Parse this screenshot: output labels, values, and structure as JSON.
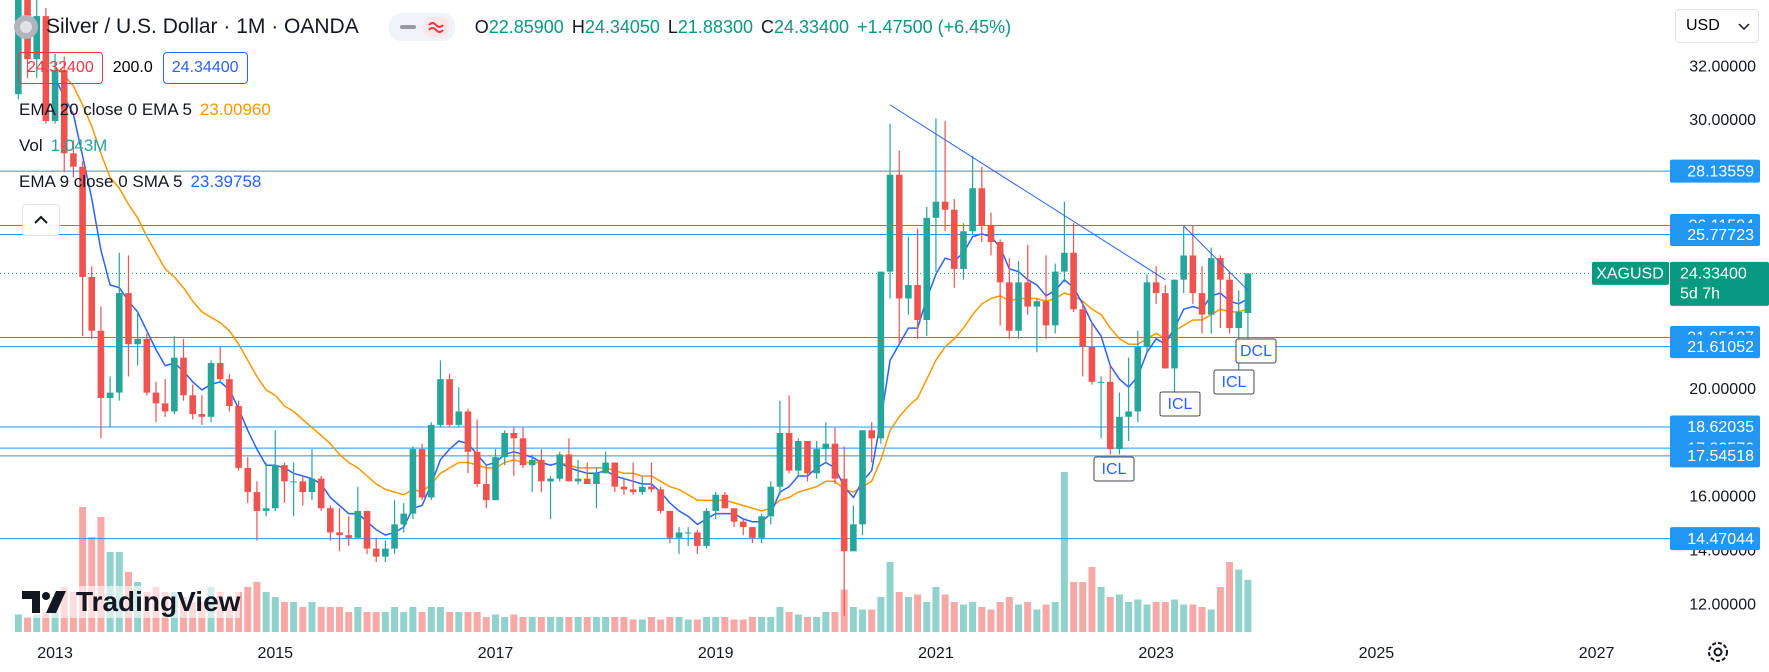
{
  "header": {
    "symbol": "Silver / U.S. Dollar · 1M · OANDA",
    "ohlc": [
      {
        "letter": "O",
        "value": "22.85900"
      },
      {
        "letter": "H",
        "value": "24.34050"
      },
      {
        "letter": "L",
        "value": "21.88300"
      },
      {
        "letter": "C",
        "value": "24.33400"
      }
    ],
    "change": "+1.47500 (+6.45%)",
    "inputs": [
      "24.32400",
      "200.0",
      "24.34400"
    ],
    "currency": "USD",
    "logo": "TradingView"
  },
  "chart_data": {
    "type": "candlestick",
    "x": [
      "2012-09",
      "2012-10",
      "2012-11",
      "2012-12",
      "2013-01",
      "2013-02",
      "2013-03",
      "2013-04",
      "2013-05",
      "2013-06",
      "2013-07",
      "2013-08",
      "2013-09",
      "2013-10",
      "2013-11",
      "2013-12",
      "2014-01",
      "2014-02",
      "2014-03",
      "2014-04",
      "2014-05",
      "2014-06",
      "2014-07",
      "2014-08",
      "2014-09",
      "2014-10",
      "2014-11",
      "2014-12",
      "2015-01",
      "2015-02",
      "2015-03",
      "2015-04",
      "2015-05",
      "2015-06",
      "2015-07",
      "2015-08",
      "2015-09",
      "2015-10",
      "2015-11",
      "2015-12",
      "2016-01",
      "2016-02",
      "2016-03",
      "2016-04",
      "2016-05",
      "2016-06",
      "2016-07",
      "2016-08",
      "2016-09",
      "2016-10",
      "2016-11",
      "2016-12",
      "2017-01",
      "2017-02",
      "2017-03",
      "2017-04",
      "2017-05",
      "2017-06",
      "2017-07",
      "2017-08",
      "2017-09",
      "2017-10",
      "2017-11",
      "2017-12",
      "2018-01",
      "2018-02",
      "2018-03",
      "2018-04",
      "2018-05",
      "2018-06",
      "2018-07",
      "2018-08",
      "2018-09",
      "2018-10",
      "2018-11",
      "2018-12",
      "2019-01",
      "2019-02",
      "2019-03",
      "2019-04",
      "2019-05",
      "2019-06",
      "2019-07",
      "2019-08",
      "2019-09",
      "2019-10",
      "2019-11",
      "2019-12",
      "2020-01",
      "2020-02",
      "2020-03",
      "2020-04",
      "2020-05",
      "2020-06",
      "2020-07",
      "2020-08",
      "2020-09",
      "2020-10",
      "2020-11",
      "2020-12",
      "2021-01",
      "2021-02",
      "2021-03",
      "2021-04",
      "2021-05",
      "2021-06",
      "2021-07",
      "2021-08",
      "2021-09",
      "2021-10",
      "2021-11",
      "2021-12",
      "2022-01",
      "2022-02",
      "2022-03",
      "2022-04",
      "2022-05",
      "2022-06",
      "2022-07",
      "2022-08",
      "2022-09",
      "2022-10",
      "2022-11",
      "2022-12",
      "2023-01",
      "2023-02",
      "2023-03",
      "2023-04",
      "2023-05",
      "2023-06",
      "2023-07",
      "2023-08",
      "2023-09",
      "2023-10",
      "2023-11"
    ],
    "open": [
      31.0,
      34.6,
      32.3,
      33.9,
      30.0,
      31.9,
      28.8,
      28.3,
      24.2,
      22.2,
      19.7,
      19.9,
      23.6,
      21.7,
      21.9,
      19.9,
      19.5,
      19.2,
      21.2,
      19.8,
      19.1,
      19.0,
      21.0,
      20.4,
      19.4,
      17.1,
      16.2,
      15.5,
      15.6,
      17.2,
      16.6,
      16.6,
      16.2,
      16.7,
      15.6,
      14.7,
      14.6,
      14.5,
      15.5,
      14.1,
      13.8,
      14.1,
      15.0,
      15.4,
      17.8,
      16.0,
      18.7,
      20.4,
      18.7,
      19.2,
      17.7,
      16.5,
      15.9,
      17.5,
      18.4,
      18.2,
      17.2,
      17.4,
      16.6,
      16.7,
      17.6,
      16.6,
      16.7,
      16.5,
      16.9,
      17.3,
      16.4,
      16.3,
      16.2,
      16.4,
      16.3,
      15.5,
      14.5,
      14.7,
      14.7,
      14.2,
      15.5,
      16.1,
      15.6,
      15.1,
      14.9,
      14.5,
      15.3,
      16.4,
      18.4,
      17.0,
      18.1,
      16.9,
      17.8,
      18.0,
      16.7,
      14.0,
      15.0,
      18.5,
      18.2,
      24.4,
      28.0,
      23.4,
      23.9,
      22.6,
      26.4,
      27.0,
      26.7,
      24.5,
      25.9,
      27.5,
      26.1,
      25.5,
      24.0,
      22.2,
      24.0,
      23.1,
      23.3,
      22.4,
      24.4,
      25.1,
      23.0,
      21.6,
      20.3,
      20.3,
      17.8,
      19.0,
      19.2,
      21.6,
      24.0,
      23.6,
      20.8,
      24.1,
      25.0,
      23.6,
      22.8,
      24.9,
      24.1,
      22.3,
      22.859
    ],
    "high": [
      35.4,
      34.9,
      34.5,
      34.2,
      32.5,
      32.4,
      29.3,
      28.5,
      24.6,
      23.1,
      20.5,
      25.1,
      25.0,
      22.9,
      22.1,
      20.3,
      20.4,
      22.0,
      21.9,
      20.2,
      19.8,
      21.1,
      21.6,
      20.6,
      19.6,
      17.5,
      16.6,
      17.3,
      18.5,
      17.3,
      17.3,
      16.8,
      17.8,
      16.8,
      15.7,
      15.6,
      15.3,
      16.4,
      15.5,
      14.5,
      14.4,
      15.9,
      15.8,
      17.9,
      18.0,
      18.8,
      21.1,
      20.6,
      20.1,
      19.3,
      18.9,
      17.2,
      17.8,
      18.5,
      18.6,
      18.6,
      17.6,
      17.8,
      16.8,
      17.7,
      18.2,
      17.4,
      17.3,
      17.1,
      17.7,
      17.3,
      16.7,
      17.3,
      16.8,
      17.3,
      16.4,
      15.5,
      14.9,
      14.9,
      14.8,
      15.6,
      16.2,
      16.2,
      15.6,
      15.2,
      14.9,
      15.4,
      16.6,
      19.6,
      19.8,
      18.2,
      18.1,
      18.1,
      18.8,
      18.6,
      17.9,
      15.7,
      18.5,
      18.8,
      24.4,
      29.9,
      28.9,
      25.7,
      26.0,
      26.8,
      30.1,
      30.0,
      27.1,
      26.2,
      28.7,
      28.3,
      26.6,
      25.6,
      24.9,
      24.8,
      25.4,
      23.4,
      25.0,
      24.7,
      27.0,
      26.2,
      23.3,
      22.5,
      20.5,
      20.9,
      19.9,
      21.2,
      22.2,
      24.3,
      24.6,
      23.9,
      24.1,
      26.1,
      26.1,
      24.6,
      25.3,
      25.0,
      24.4,
      23.7,
      24.3405
    ],
    "low": [
      30.8,
      31.6,
      31.6,
      29.9,
      29.9,
      28.1,
      27.9,
      22.0,
      21.9,
      18.2,
      18.6,
      19.6,
      20.5,
      20.9,
      19.8,
      18.8,
      19.0,
      19.1,
      19.6,
      18.9,
      18.7,
      18.8,
      20.3,
      19.2,
      17.0,
      15.8,
      14.4,
      15.3,
      15.5,
      15.8,
      15.3,
      15.7,
      15.9,
      15.5,
      14.4,
      14.0,
      14.2,
      14.5,
      13.9,
      13.6,
      13.6,
      13.9,
      14.7,
      15.2,
      15.9,
      15.9,
      18.6,
      18.6,
      18.6,
      16.9,
      16.4,
      15.6,
      15.9,
      17.2,
      16.8,
      17.1,
      16.2,
      16.2,
      15.2,
      16.6,
      16.6,
      16.5,
      16.5,
      15.6,
      16.9,
      16.2,
      16.1,
      16.1,
      16.1,
      16.2,
      15.4,
      14.3,
      13.9,
      14.2,
      13.9,
      14.1,
      15.2,
      15.6,
      14.9,
      14.6,
      14.3,
      14.3,
      15.0,
      16.1,
      16.9,
      16.8,
      16.6,
      16.7,
      17.3,
      16.5,
      11.6,
      14.0,
      14.6,
      17.3,
      18.0,
      23.4,
      21.7,
      22.8,
      21.9,
      22.0,
      24.4,
      25.9,
      23.8,
      24.1,
      25.8,
      25.5,
      25.0,
      22.4,
      21.9,
      21.9,
      22.8,
      21.4,
      21.9,
      22.1,
      24.0,
      22.9,
      20.5,
      20.2,
      18.2,
      17.6,
      17.6,
      18.1,
      18.8,
      21.4,
      23.2,
      20.8,
      19.9,
      23.6,
      23.2,
      22.1,
      22.1,
      22.3,
      22.1,
      20.7,
      21.883
    ],
    "close": [
      34.6,
      32.3,
      33.9,
      30.0,
      31.9,
      28.8,
      28.3,
      24.2,
      22.2,
      19.7,
      19.9,
      23.6,
      21.7,
      21.9,
      19.9,
      19.5,
      19.2,
      21.2,
      19.8,
      19.1,
      19.0,
      21.0,
      20.4,
      19.4,
      17.1,
      16.2,
      15.5,
      15.6,
      17.2,
      16.6,
      16.6,
      16.2,
      16.7,
      15.6,
      14.7,
      14.6,
      14.5,
      15.5,
      14.1,
      13.8,
      14.1,
      15.0,
      15.4,
      17.8,
      16.0,
      18.7,
      20.4,
      18.7,
      19.2,
      17.7,
      16.5,
      15.9,
      17.5,
      18.4,
      18.2,
      17.2,
      17.4,
      16.6,
      16.7,
      17.6,
      16.6,
      16.7,
      16.5,
      16.9,
      17.3,
      16.4,
      16.3,
      16.2,
      16.4,
      16.3,
      15.5,
      14.5,
      14.7,
      14.7,
      14.2,
      15.5,
      16.1,
      15.6,
      15.1,
      14.9,
      14.5,
      15.3,
      16.4,
      18.4,
      17.0,
      18.1,
      16.9,
      17.8,
      18.0,
      16.7,
      14.0,
      15.0,
      18.5,
      18.2,
      24.4,
      28.0,
      23.4,
      23.9,
      22.6,
      26.4,
      27.0,
      26.7,
      24.5,
      25.9,
      27.5,
      26.1,
      25.5,
      24.0,
      22.2,
      24.0,
      23.1,
      23.3,
      22.4,
      24.4,
      25.1,
      23.0,
      21.6,
      20.3,
      20.3,
      17.8,
      19.0,
      19.2,
      21.6,
      24.0,
      23.6,
      20.8,
      24.1,
      25.0,
      23.6,
      22.8,
      24.9,
      24.1,
      22.3,
      22.9,
      24.334
    ],
    "up_color": "#26a69a",
    "down_color": "#ef5350",
    "volume_name": "Vol",
    "volume_legend": "1.043M",
    "volume": [
      0.35,
      0.3,
      0.35,
      0.4,
      0.7,
      0.9,
      0.8,
      2.5,
      1.9,
      2.3,
      1.6,
      1.6,
      1.2,
      1.0,
      0.8,
      0.9,
      0.8,
      0.8,
      0.7,
      0.6,
      0.6,
      0.9,
      0.8,
      0.6,
      0.8,
      0.9,
      1.0,
      0.8,
      0.7,
      0.6,
      0.6,
      0.5,
      0.6,
      0.5,
      0.5,
      0.5,
      0.4,
      0.5,
      0.4,
      0.4,
      0.4,
      0.5,
      0.4,
      0.5,
      0.4,
      0.5,
      0.5,
      0.4,
      0.4,
      0.4,
      0.4,
      0.3,
      0.35,
      0.3,
      0.35,
      0.3,
      0.3,
      0.3,
      0.3,
      0.3,
      0.3,
      0.3,
      0.3,
      0.3,
      0.3,
      0.3,
      0.3,
      0.25,
      0.25,
      0.3,
      0.25,
      0.3,
      0.3,
      0.25,
      0.25,
      0.3,
      0.3,
      0.3,
      0.25,
      0.25,
      0.3,
      0.3,
      0.3,
      0.5,
      0.4,
      0.35,
      0.3,
      0.3,
      0.4,
      0.4,
      0.85,
      0.5,
      0.45,
      0.45,
      0.7,
      1.4,
      0.8,
      0.7,
      0.75,
      0.6,
      0.9,
      0.75,
      0.6,
      0.55,
      0.6,
      0.5,
      0.45,
      0.6,
      0.7,
      0.55,
      0.6,
      0.45,
      0.55,
      0.6,
      3.2,
      1.0,
      1.0,
      1.3,
      0.9,
      0.7,
      0.75,
      0.6,
      0.65,
      0.55,
      0.6,
      0.6,
      0.65,
      0.55,
      0.55,
      0.5,
      0.45,
      0.9,
      1.4,
      1.25,
      1.043
    ],
    "overlays": [
      {
        "name": "EMA 20 close 0 EMA 5",
        "legend_value": "23.00960",
        "color": "#ff9800",
        "values": [
          null,
          null,
          null,
          null,
          32.0,
          31.7,
          31.3,
          30.6,
          29.8,
          28.8,
          27.9,
          27.5,
          26.9,
          26.4,
          25.7,
          25.1,
          24.5,
          24.2,
          23.8,
          23.3,
          22.9,
          22.7,
          22.5,
          22.2,
          21.7,
          21.1,
          20.5,
          20.0,
          19.8,
          19.4,
          19.2,
          18.9,
          18.6,
          18.3,
          18.0,
          17.6,
          17.3,
          17.1,
          16.8,
          16.5,
          16.3,
          16.2,
          16.1,
          16.3,
          16.2,
          16.5,
          16.9,
          17.1,
          17.3,
          17.3,
          17.2,
          17.1,
          17.1,
          17.3,
          17.4,
          17.3,
          17.3,
          17.3,
          17.2,
          17.3,
          17.2,
          17.1,
          17.1,
          17.1,
          17.1,
          17.0,
          16.9,
          16.9,
          16.8,
          16.8,
          16.6,
          16.4,
          16.3,
          16.1,
          15.9,
          15.9,
          15.9,
          15.9,
          15.8,
          15.7,
          15.6,
          15.5,
          15.6,
          15.9,
          16.0,
          16.2,
          16.3,
          16.4,
          16.6,
          16.6,
          16.3,
          16.2,
          16.4,
          16.6,
          17.4,
          18.5,
          19.0,
          19.4,
          19.7,
          20.4,
          21.1,
          21.6,
          21.9,
          22.3,
          22.8,
          23.2,
          23.4,
          23.5,
          23.3,
          23.4,
          23.4,
          23.4,
          23.3,
          23.4,
          23.6,
          23.5,
          23.3,
          23.0,
          22.8,
          22.3,
          21.9,
          21.7,
          21.7,
          21.9,
          22.1,
          21.9,
          22.2,
          22.4,
          22.6,
          22.6,
          22.8,
          23.0,
          22.9,
          22.9,
          23.0096
        ]
      },
      {
        "name": "EMA 9 close 0 SMA 5",
        "legend_value": "23.39758",
        "color": "#2962ff",
        "values": [
          null,
          null,
          null,
          null,
          31.6,
          30.9,
          30.25,
          28.7,
          27.1,
          25.2,
          23.9,
          23.8,
          23.3,
          22.9,
          22.2,
          21.5,
          20.9,
          21.0,
          20.7,
          20.3,
          20.0,
          20.2,
          20.3,
          20.0,
          19.3,
          18.5,
          17.8,
          17.2,
          17.2,
          17.1,
          16.9,
          16.8,
          16.7,
          16.5,
          16.0,
          15.7,
          15.4,
          15.4,
          15.1,
          14.8,
          14.6,
          14.7,
          14.9,
          15.6,
          15.7,
          16.5,
          17.4,
          17.8,
          18.1,
          18.0,
          17.6,
          17.2,
          17.3,
          17.6,
          17.7,
          17.6,
          17.5,
          17.3,
          17.2,
          17.3,
          17.1,
          17.0,
          16.9,
          16.9,
          17.0,
          16.8,
          16.7,
          16.6,
          16.5,
          16.5,
          16.2,
          15.8,
          15.5,
          15.3,
          15.0,
          15.2,
          15.4,
          15.4,
          15.4,
          15.2,
          15.1,
          15.1,
          15.4,
          16.2,
          16.4,
          16.8,
          16.8,
          17.1,
          17.3,
          17.1,
          16.4,
          16.0,
          16.6,
          17.0,
          18.9,
          21.1,
          21.7,
          22.3,
          22.3,
          23.4,
          24.3,
          24.9,
          24.8,
          25.1,
          25.7,
          25.8,
          25.7,
          25.3,
          24.5,
          24.4,
          24.1,
          23.9,
          23.5,
          23.7,
          24.1,
          23.8,
          23.2,
          22.5,
          22.0,
          20.9,
          20.4,
          20.1,
          20.5,
          21.4,
          21.9,
          21.7,
          22.3,
          23.0,
          23.1,
          23.0,
          23.5,
          23.6,
          23.3,
          23.2,
          23.39758
        ]
      }
    ],
    "levels": [
      28.13559,
      26.11584,
      25.77723,
      21.95127,
      21.61052,
      18.62035,
      17.83576,
      17.54518,
      14.47044
    ],
    "level_color": "#2196f3",
    "last_price": {
      "value": 24.334,
      "label": "24.33400"
    },
    "symbol_tag": "XAGUSD",
    "countdown": "5d 7h",
    "last_color": "#089981",
    "trendlines": [
      {
        "x": [
          "2020-08",
          "2023-02"
        ],
        "y": [
          30.6,
          24.1
        ]
      },
      {
        "x": [
          "2023-04",
          "2023-11"
        ],
        "y": [
          26.1,
          23.7
        ]
      }
    ],
    "annotations": [
      "ICL",
      "ICL",
      "ICL",
      "DCL"
    ],
    "ylim": [
      10.7,
      34.5
    ],
    "yticks": [
      {
        "value": 32,
        "label": "32.00000"
      },
      {
        "value": 30,
        "label": "30.00000"
      },
      {
        "value": 20,
        "label": "20.00000"
      },
      {
        "value": 16,
        "label": "16.00000"
      },
      {
        "value": 14,
        "label": "14.00000"
      },
      {
        "value": 12,
        "label": "12.00000"
      }
    ],
    "xlim": [
      "2012-07",
      "2027-09"
    ],
    "xticks": [
      {
        "value": "2013-01",
        "label": "2013"
      },
      {
        "value": "2015-01",
        "label": "2015"
      },
      {
        "value": "2017-01",
        "label": "2017"
      },
      {
        "value": "2019-01",
        "label": "2019"
      },
      {
        "value": "2021-01",
        "label": "2021"
      },
      {
        "value": "2023-01",
        "label": "2023"
      },
      {
        "value": "2025-01",
        "label": "2025"
      },
      {
        "value": "2027-01",
        "label": "2027"
      }
    ],
    "grid": false
  }
}
